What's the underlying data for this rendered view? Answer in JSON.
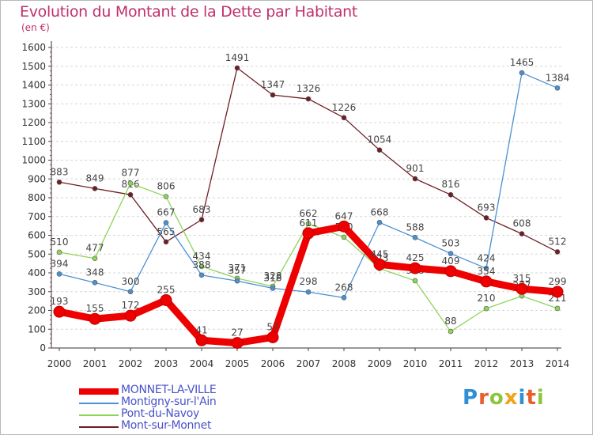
{
  "title": "Evolution du Montant de la Dette par Habitant",
  "unit_label": "(en €)",
  "brand": {
    "letters": [
      "P",
      "r",
      "o",
      "x",
      "i",
      "t",
      "i"
    ],
    "colors": [
      "#2f8fd4",
      "#e85d2a",
      "#8cc63f",
      "#f2a21b",
      "#2f8fd4",
      "#e85d2a",
      "#8cc63f"
    ]
  },
  "chart_data": {
    "type": "line",
    "x": [
      "2000",
      "2001",
      "2002",
      "2003",
      "2004",
      "2005",
      "2006",
      "2007",
      "2008",
      "2009",
      "2010",
      "2011",
      "2012",
      "2013",
      "2014"
    ],
    "yticks": [
      "0",
      "100",
      "200",
      "300",
      "400",
      "500",
      "600",
      "700",
      "800",
      "900",
      "1000",
      "1100",
      "1200",
      "1300",
      "1400",
      "1500",
      "1600"
    ],
    "ylim": [
      0,
      1600
    ],
    "grid": "horizontal-dashed",
    "legend": "bottom-left",
    "series": [
      {
        "name": "Mont-sur-Monnet",
        "color": "#6e1e24",
        "values": [
          883,
          849,
          816,
          565,
          683,
          1491,
          1347,
          1326,
          1226,
          1054,
          901,
          816,
          693,
          608,
          512
        ],
        "labels": [
          "883",
          "849",
          "816",
          "565",
          "683",
          "1491",
          "1347",
          "1326",
          "1226",
          "1054",
          "901",
          "816",
          "693",
          "608",
          "512"
        ]
      },
      {
        "name": "Pont-du-Navoy",
        "color": "#8fd45a",
        "values": [
          510,
          477,
          877,
          806,
          434,
          371,
          328,
          662,
          590,
          423,
          358,
          88,
          210,
          277,
          211
        ],
        "labels": [
          "510",
          "477",
          "877",
          "806",
          "434",
          "371",
          "328",
          "662",
          "590",
          "423",
          "358",
          "88",
          "210",
          "277",
          "211"
        ]
      },
      {
        "name": "Montigny-sur-l'Ain",
        "color": "#4a90d2",
        "values": [
          394,
          348,
          300,
          667,
          388,
          357,
          318,
          298,
          268,
          668,
          588,
          503,
          424,
          1465,
          1384
        ],
        "labels": [
          "394",
          "348",
          "300",
          "667",
          "388",
          "357",
          "318",
          "298",
          "268",
          "668",
          "588",
          "503",
          "424",
          "1465",
          "1384"
        ]
      },
      {
        "name": "MONNET-LA-VILLE",
        "color": "#ee0000",
        "values": [
          193,
          155,
          172,
          255,
          41,
          27,
          57,
          611,
          647,
          445,
          425,
          409,
          354,
          315,
          299
        ],
        "labels": [
          "193",
          "155",
          "172",
          "255",
          "41",
          "27",
          "57",
          "611",
          "647",
          "445",
          "425",
          "409",
          "354",
          "315",
          "299"
        ]
      }
    ],
    "legend_order": [
      "MONNET-LA-VILLE",
      "Montigny-sur-l'Ain",
      "Pont-du-Navoy",
      "Mont-sur-Monnet"
    ]
  }
}
